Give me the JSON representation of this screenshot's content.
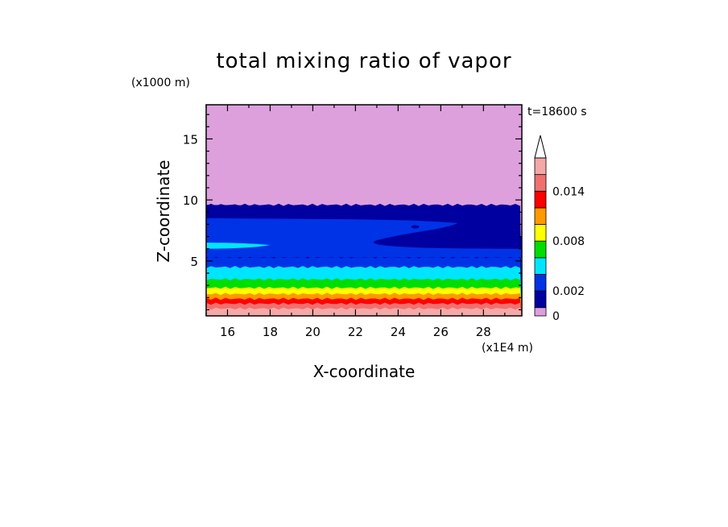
{
  "chart_data": {
    "type": "heatmap",
    "title": "total mixing ratio of vapor",
    "xlabel": "X-coordinate",
    "ylabel": "Z-coordinate",
    "x_unit": "(x1E4 m)",
    "y_unit": "(x1000 m)",
    "time_label": "t=18600 s",
    "xlim": [
      15,
      29.8
    ],
    "ylim": [
      0.5,
      17.8
    ],
    "x_ticks": [
      16,
      18,
      20,
      22,
      24,
      26,
      28
    ],
    "y_ticks": [
      5,
      10,
      15
    ],
    "colorbar": {
      "levels": [
        0,
        0.001,
        0.002,
        0.004,
        0.006,
        0.008,
        0.01,
        0.012,
        0.014,
        0.016
      ],
      "colors": [
        "#dda0dd",
        "#0000a0",
        "#0033e6",
        "#00e5ff",
        "#00dd00",
        "#ffff00",
        "#ff9900",
        "#ff0000",
        "#f07070",
        "#f4a8a8"
      ],
      "tick_values": [
        0,
        0.002,
        0.008,
        0.014
      ],
      "tick_labels": [
        "0",
        "0.002",
        "0.008",
        "0.014"
      ],
      "extend": "max"
    },
    "bands": [
      {
        "color": "#f4a8a8",
        "z_top": 1.1
      },
      {
        "color": "#f07070",
        "z_top": 1.5
      },
      {
        "color": "#ff0000",
        "z_top": 1.9
      },
      {
        "color": "#ff9900",
        "z_top": 2.3
      },
      {
        "color": "#ffff00",
        "z_top": 2.8
      },
      {
        "color": "#00dd00",
        "z_top": 3.5
      },
      {
        "color": "#00e5ff",
        "z_top": 4.5
      },
      {
        "color": "#0033e6",
        "z_top": 5.3
      },
      {
        "color": "#0000a0",
        "z_top": 9.6
      }
    ],
    "background_color": "#dda0dd",
    "grid": false
  }
}
